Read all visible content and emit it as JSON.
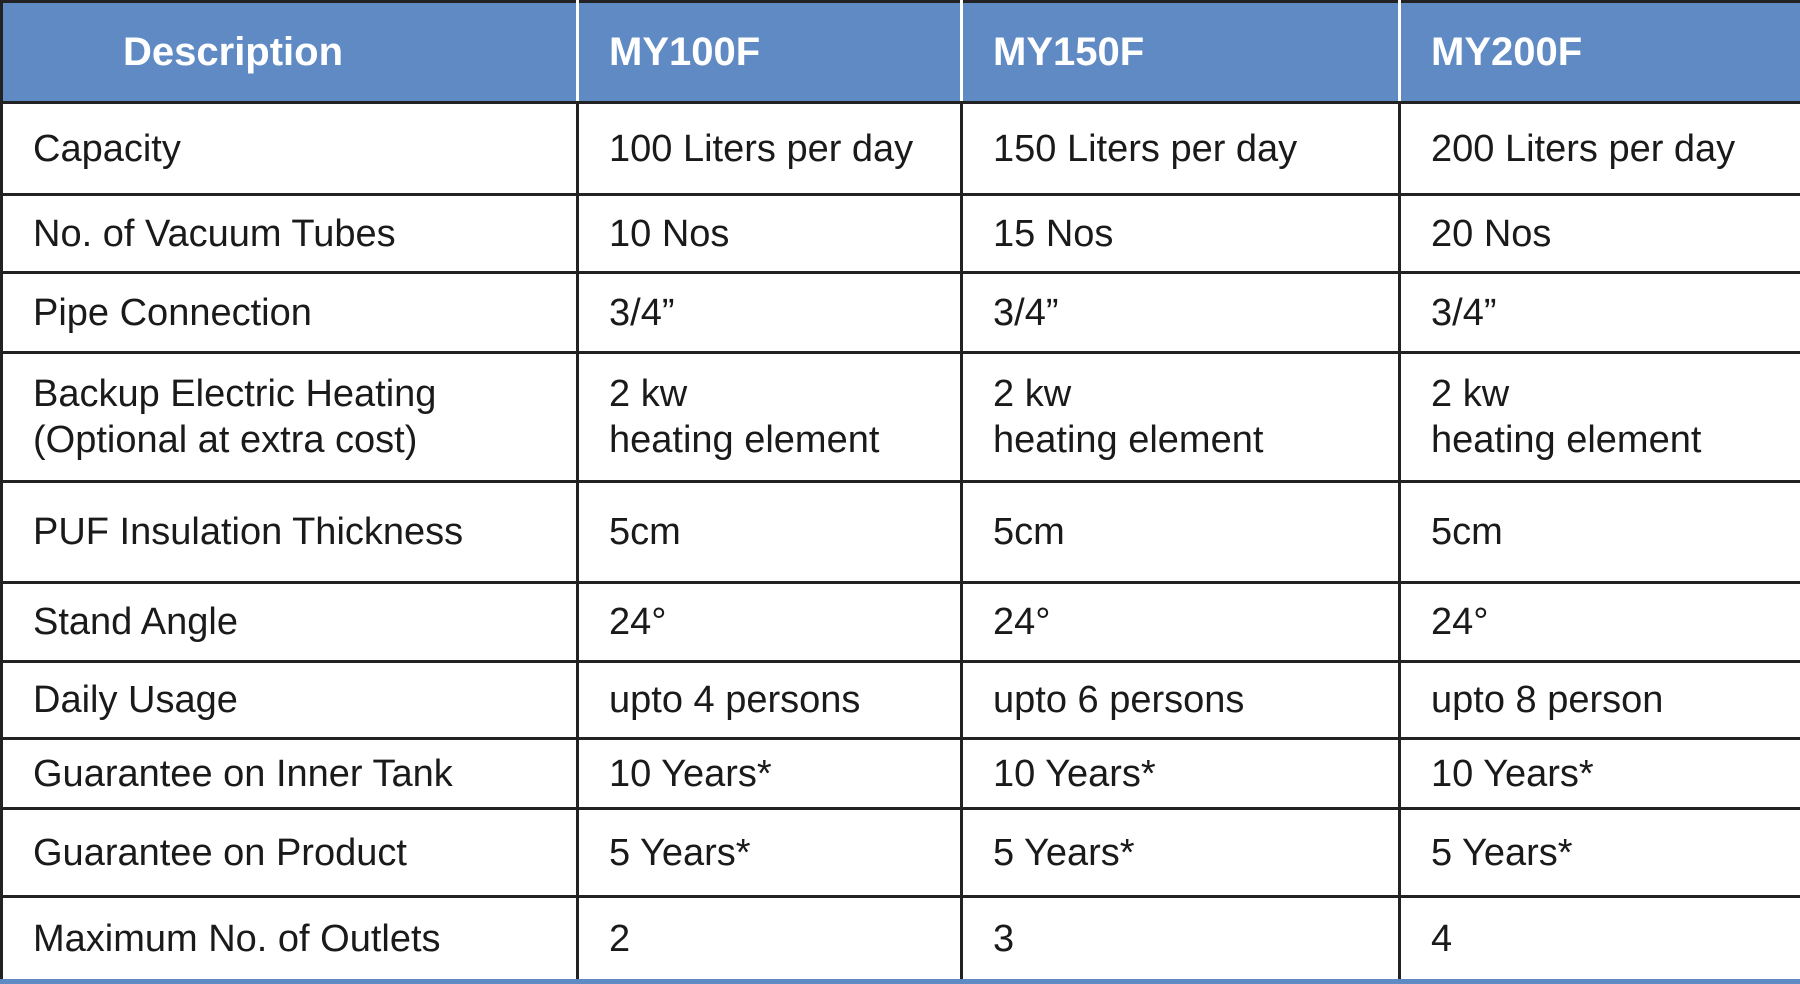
{
  "table": {
    "header": [
      "Description",
      "MY100F",
      "MY150F",
      "MY200F"
    ],
    "rows": [
      [
        "Capacity",
        "100 Liters per day",
        "150 Liters per day",
        "200 Liters per day"
      ],
      [
        "No. of Vacuum Tubes",
        "10 Nos",
        "15 Nos",
        "20 Nos"
      ],
      [
        "Pipe Connection",
        "3/4”",
        "3/4”",
        "3/4”"
      ],
      [
        "Backup Electric Heating\n(Optional at extra cost)",
        "2 kw\nheating element",
        "2 kw\nheating element",
        "2 kw\nheating element"
      ],
      [
        "PUF Insulation Thickness",
        "5cm",
        "5cm",
        "5cm"
      ],
      [
        "Stand Angle",
        "24°",
        "24°",
        "24°"
      ],
      [
        "Daily Usage",
        "upto 4 persons",
        "upto 6 persons",
        "upto 8 person"
      ],
      [
        "Guarantee on Inner Tank",
        "10 Years*",
        "10 Years*",
        "10 Years*"
      ],
      [
        "Guarantee on Product",
        "5 Years*",
        "5 Years*",
        "5 Years*"
      ],
      [
        "Maximum No. of Outlets",
        "2",
        "3",
        "4"
      ]
    ]
  }
}
